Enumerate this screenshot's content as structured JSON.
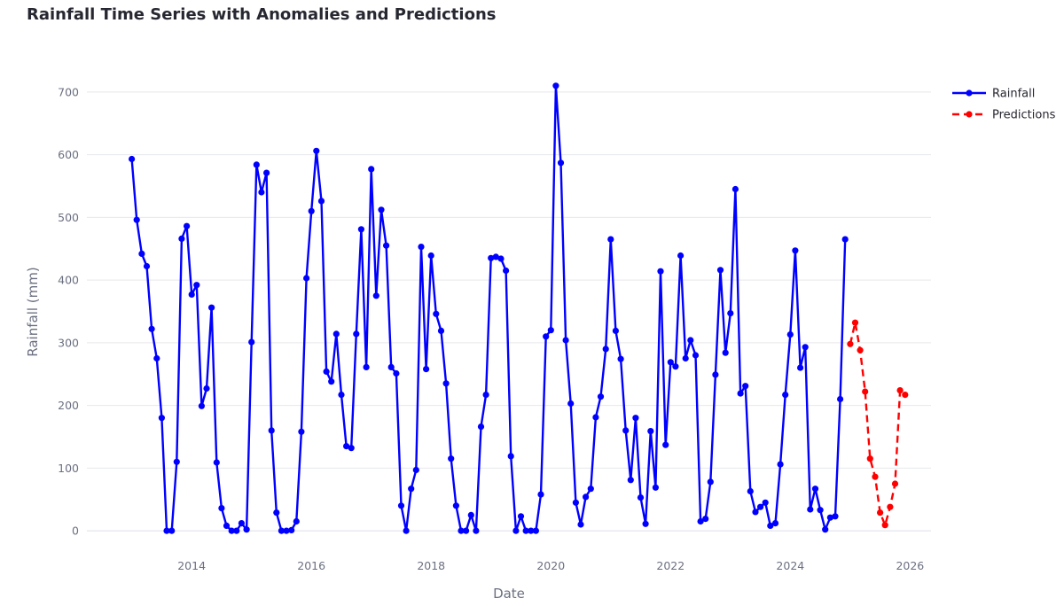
{
  "chart_data": {
    "type": "line",
    "title": "Rainfall Time Series with Anomalies and Predictions",
    "xlabel": "Date",
    "ylabel": "Rainfall (mm)",
    "xlim": [
      2012.25,
      2026.35
    ],
    "ylim": [
      -55,
      745
    ],
    "xticks": [
      2014,
      2016,
      2018,
      2020,
      2022,
      2024,
      2026
    ],
    "xtick_labels": [
      "2014",
      "2016",
      "2018",
      "2020",
      "2022",
      "2024",
      "2026"
    ],
    "yticks": [
      0,
      100,
      200,
      300,
      400,
      500,
      600,
      700
    ],
    "ytick_labels": [
      "0",
      "100",
      "200",
      "300",
      "400",
      "500",
      "600",
      "700"
    ],
    "grid": "horizontal",
    "legend_position": "top-right",
    "series": [
      {
        "name": "Rainfall",
        "color": "#0000ff",
        "dash": "solid",
        "x": [
          2013.0,
          2013.083,
          2013.167,
          2013.25,
          2013.333,
          2013.417,
          2013.5,
          2013.583,
          2013.667,
          2013.75,
          2013.833,
          2013.917,
          2014.0,
          2014.083,
          2014.167,
          2014.25,
          2014.333,
          2014.417,
          2014.5,
          2014.583,
          2014.667,
          2014.75,
          2014.833,
          2014.917,
          2015.0,
          2015.083,
          2015.167,
          2015.25,
          2015.333,
          2015.417,
          2015.5,
          2015.583,
          2015.667,
          2015.75,
          2015.833,
          2015.917,
          2016.0,
          2016.083,
          2016.167,
          2016.25,
          2016.333,
          2016.417,
          2016.5,
          2016.583,
          2016.667,
          2016.75,
          2016.833,
          2016.917,
          2017.0,
          2017.083,
          2017.167,
          2017.25,
          2017.333,
          2017.417,
          2017.5,
          2017.583,
          2017.667,
          2017.75,
          2017.833,
          2017.917,
          2018.0,
          2018.083,
          2018.167,
          2018.25,
          2018.333,
          2018.417,
          2018.5,
          2018.583,
          2018.667,
          2018.75,
          2018.833,
          2018.917,
          2019.0,
          2019.083,
          2019.167,
          2019.25,
          2019.333,
          2019.417,
          2019.5,
          2019.583,
          2019.667,
          2019.75,
          2019.833,
          2019.917,
          2020.0,
          2020.083,
          2020.167,
          2020.25,
          2020.333,
          2020.417,
          2020.5,
          2020.583,
          2020.667,
          2020.75,
          2020.833,
          2020.917,
          2021.0,
          2021.083,
          2021.167,
          2021.25,
          2021.333,
          2021.417,
          2021.5,
          2021.583,
          2021.667,
          2021.75,
          2021.833,
          2021.917,
          2022.0,
          2022.083,
          2022.167,
          2022.25,
          2022.333,
          2022.417,
          2022.5,
          2022.583,
          2022.667,
          2022.75,
          2022.833,
          2022.917,
          2023.0,
          2023.083,
          2023.167,
          2023.25,
          2023.333,
          2023.417,
          2023.5,
          2023.583,
          2023.667,
          2023.75,
          2023.833,
          2023.917,
          2024.0,
          2024.083,
          2024.167,
          2024.25,
          2024.333,
          2024.417,
          2024.5,
          2024.583,
          2024.667,
          2024.75,
          2024.833,
          2024.917
        ],
        "y": [
          593,
          496,
          442,
          422,
          322,
          275,
          180,
          0,
          0,
          110,
          466,
          486,
          377,
          392,
          199,
          227,
          356,
          109,
          36,
          8,
          0,
          0,
          12,
          2,
          301,
          584,
          540,
          571,
          160,
          29,
          0,
          0,
          1,
          15,
          158,
          403,
          510,
          606,
          526,
          254,
          238,
          314,
          217,
          135,
          132,
          314,
          481,
          261,
          577,
          375,
          512,
          455,
          261,
          251,
          40,
          0,
          67,
          97,
          453,
          258,
          439,
          346,
          319,
          235,
          115,
          40,
          0,
          0,
          25,
          0,
          166,
          217,
          435,
          437,
          434,
          415,
          119,
          0,
          23,
          0,
          0,
          0,
          58,
          310,
          320,
          710,
          587,
          304,
          203,
          45,
          10,
          54,
          67,
          181,
          214,
          290,
          465,
          319,
          274,
          160,
          81,
          180,
          53,
          11,
          159,
          69,
          414,
          137,
          269,
          262,
          439,
          275,
          304,
          280,
          15,
          19,
          78,
          249,
          416,
          284,
          347,
          545,
          219,
          231,
          63,
          30,
          38,
          45,
          8,
          12,
          106,
          217,
          313,
          447,
          260,
          293,
          34,
          67,
          33,
          2,
          21,
          23,
          210,
          465
        ]
      },
      {
        "name": "Predictions",
        "color": "#ff0000",
        "dash": "dash",
        "x": [
          2025.0,
          2025.083,
          2025.167,
          2025.25,
          2025.333,
          2025.417,
          2025.5,
          2025.583,
          2025.667,
          2025.75,
          2025.833,
          2025.917
        ],
        "y": [
          298,
          332,
          288,
          222,
          115,
          86,
          29,
          9,
          38,
          75,
          224,
          217
        ]
      }
    ]
  }
}
